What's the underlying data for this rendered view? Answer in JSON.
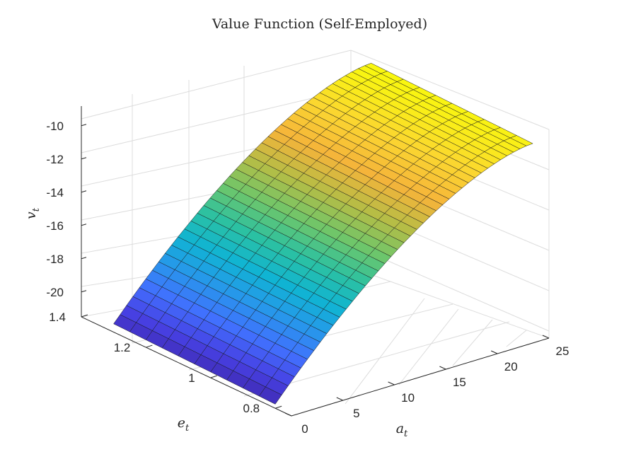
{
  "chart_data": {
    "type": "surface",
    "title": "Value Function (Self-Employed)",
    "xlabel": "a",
    "xlabel_sub": "t",
    "ylabel": "e",
    "ylabel_sub": "t",
    "zlabel": "v",
    "zlabel_sub": "t",
    "x_ticks": [
      0,
      5,
      10,
      15,
      20,
      25
    ],
    "y_ticks": [
      0.8,
      1,
      1.2,
      1.4
    ],
    "z_ticks": [
      -10,
      -12,
      -14,
      -16,
      -18,
      -20
    ],
    "x_tick_labels": [
      "0",
      "5",
      "10",
      "15",
      "20",
      "25"
    ],
    "y_tick_labels": [
      "0.8",
      "1",
      "1.2",
      "1.4"
    ],
    "z_tick_labels": [
      "-10",
      "-12",
      "-14",
      "-16",
      "-18",
      "-20"
    ],
    "xlim": [
      0,
      25
    ],
    "ylim": [
      0.75,
      1.4
    ],
    "zlim": [
      -21.5,
      -9.3
    ],
    "a_min": 0,
    "a_max": 25,
    "e_min": 0.8,
    "e_max": 1.3,
    "a_steps": 40,
    "e_steps": 10,
    "surface_formula": "v(a,e) = -10 - 11*((a_max - a)/a_max)^1.6 - 0.5*(1.3 - e)",
    "grid": true,
    "colormap": [
      "#3e26a8",
      "#4740e3",
      "#4170fe",
      "#2797eb",
      "#10b4d3",
      "#2bc1a2",
      "#6dc66b",
      "#b4bd46",
      "#f5b43a",
      "#fbd630",
      "#f9f80e"
    ]
  }
}
